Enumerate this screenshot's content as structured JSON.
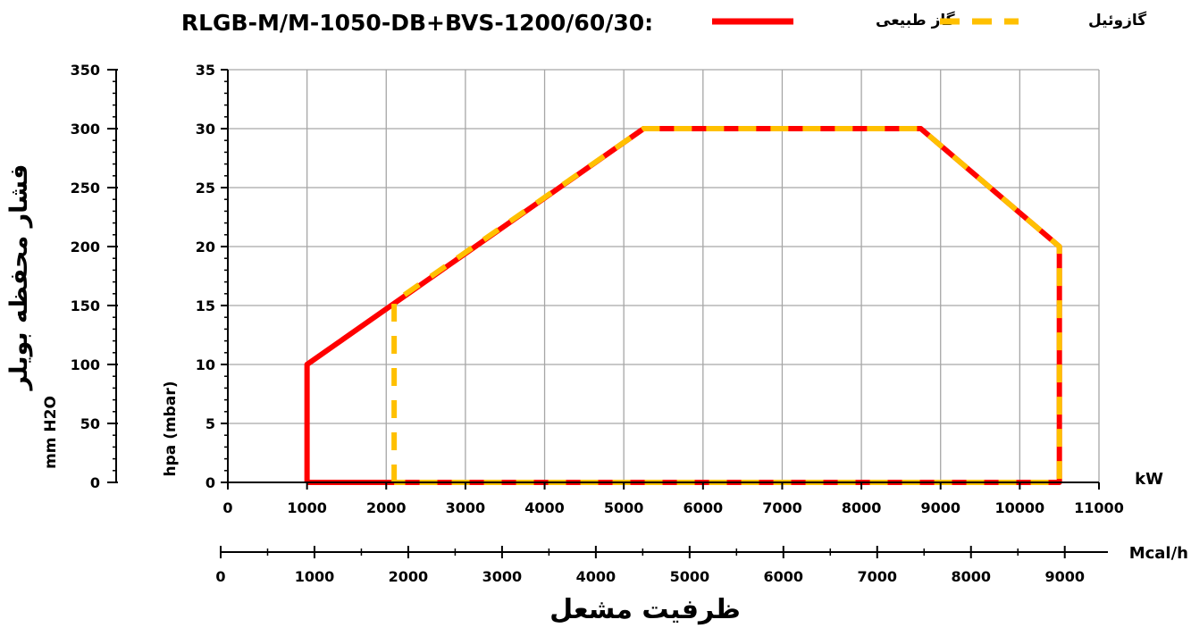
{
  "chart_data": {
    "type": "line",
    "title": "RLGB-M/M-1050-DB+BVS-1200/60/30:",
    "x": {
      "unit": "kW",
      "lim": [
        0,
        11000
      ],
      "ticks": [
        0,
        1000,
        2000,
        3000,
        4000,
        5000,
        6000,
        7000,
        8000,
        9000,
        10000,
        11000
      ]
    },
    "x2": {
      "unit": "Mcal/h",
      "lim": [
        0,
        9460
      ],
      "ticks": [
        0,
        1000,
        2000,
        3000,
        4000,
        5000,
        6000,
        7000,
        8000,
        9000
      ]
    },
    "xlabel": "ظرفیت مشعل",
    "y": {
      "label": "hpa (mbar)",
      "lim": [
        0,
        35
      ],
      "ticks": [
        0,
        5,
        10,
        15,
        20,
        25,
        30,
        35
      ]
    },
    "y2": {
      "unit": "mm H2O",
      "lim": [
        0,
        350
      ],
      "ticks": [
        0,
        50,
        100,
        150,
        200,
        250,
        300,
        350
      ]
    },
    "ylabel": "فشار محفظه بویلر",
    "grid": true,
    "legend_position": "top-right",
    "series": [
      {
        "name": "گاز طبیعی",
        "color": "#ff0000",
        "style": "solid",
        "points": [
          [
            1000,
            0
          ],
          [
            1000,
            10
          ],
          [
            5250,
            30
          ],
          [
            8750,
            30
          ],
          [
            10500,
            20
          ],
          [
            10500,
            0
          ],
          [
            1000,
            0
          ]
        ]
      },
      {
        "name": "گازوئیل",
        "color": "#ffc000",
        "style": "dashed",
        "points": [
          [
            2100,
            0
          ],
          [
            2100,
            15.3
          ],
          [
            5250,
            30
          ],
          [
            8750,
            30
          ],
          [
            10500,
            20
          ],
          [
            10500,
            0
          ],
          [
            2100,
            0
          ]
        ]
      }
    ]
  }
}
